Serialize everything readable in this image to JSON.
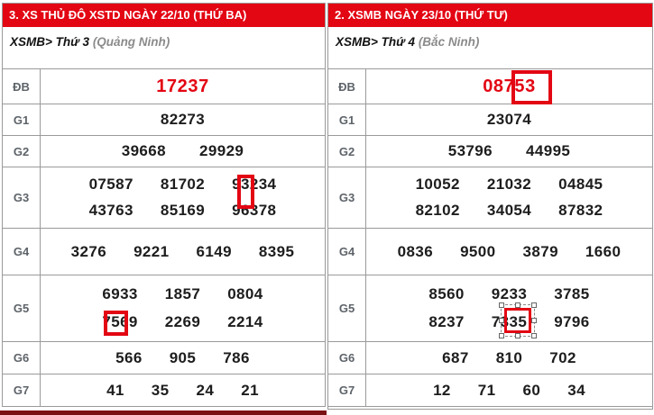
{
  "colors": {
    "header_red": "#e30613",
    "prize_db_red": "#e30613",
    "highlight_box_red": "#e30613",
    "label_gray": "#5d6369",
    "number_black": "#1d1d1d",
    "border_gray": "#9a9a9a",
    "region_gray": "#8b8b8b",
    "bottom_strip_dark_red": "#7a1113"
  },
  "tables": [
    {
      "header": "3. XS THỦ ĐÔ XSTD NGÀY 22/10 (THỨ BA)",
      "subtitle_prefix": "XSMB>",
      "subtitle_day": "Thứ 3",
      "subtitle_region": "(Quảng Ninh)",
      "rows": [
        {
          "label": "ĐB",
          "lines": [
            [
              "17237"
            ]
          ]
        },
        {
          "label": "G1",
          "lines": [
            [
              "82273"
            ]
          ]
        },
        {
          "label": "G2",
          "lines": [
            [
              "39668",
              "29929"
            ]
          ]
        },
        {
          "label": "G3",
          "lines": [
            [
              "07587",
              "81702",
              "93234"
            ],
            [
              "43763",
              "85169",
              "96378"
            ]
          ]
        },
        {
          "label": "G4",
          "lines": [
            [
              "3276",
              "9221",
              "6149",
              "8395"
            ]
          ]
        },
        {
          "label": "G5",
          "lines": [
            [
              "6933",
              "1857",
              "0804"
            ],
            [
              "7569",
              "2269",
              "2214"
            ]
          ]
        },
        {
          "label": "G6",
          "lines": [
            [
              "566",
              "905",
              "786"
            ]
          ]
        },
        {
          "label": "G7",
          "lines": [
            [
              "41",
              "35",
              "24",
              "21"
            ]
          ]
        }
      ]
    },
    {
      "header": "2. XSMB NGÀY 23/10 (THỨ TƯ)",
      "subtitle_prefix": "XSMB>",
      "subtitle_day": "Thứ 4",
      "subtitle_region": "(Bắc Ninh)",
      "rows": [
        {
          "label": "ĐB",
          "lines": [
            [
              "08753"
            ]
          ]
        },
        {
          "label": "G1",
          "lines": [
            [
              "23074"
            ]
          ]
        },
        {
          "label": "G2",
          "lines": [
            [
              "53796",
              "44995"
            ]
          ]
        },
        {
          "label": "G3",
          "lines": [
            [
              "10052",
              "21032",
              "04845"
            ],
            [
              "82102",
              "34054",
              "87832"
            ]
          ]
        },
        {
          "label": "G4",
          "lines": [
            [
              "0836",
              "9500",
              "3879",
              "1660"
            ]
          ]
        },
        {
          "label": "G5",
          "lines": [
            [
              "8560",
              "9233",
              "3785"
            ],
            [
              "8237",
              "7335",
              "9796"
            ]
          ]
        },
        {
          "label": "G6",
          "lines": [
            [
              "687",
              "810",
              "702"
            ]
          ]
        },
        {
          "label": "G7",
          "lines": [
            [
              "12",
              "71",
              "60",
              "34"
            ]
          ]
        }
      ]
    }
  ],
  "annotations": [
    {
      "type": "red-box",
      "target": "digits 53 of right ĐB prize 08753"
    },
    {
      "type": "red-box",
      "target": "digit 3 of left G3 number 93234"
    },
    {
      "type": "red-box",
      "target": "digit 5 of left G5 number 7569"
    },
    {
      "type": "selected-red-box-with-handles",
      "target": "digits 35 of right G5 number 7335"
    }
  ]
}
